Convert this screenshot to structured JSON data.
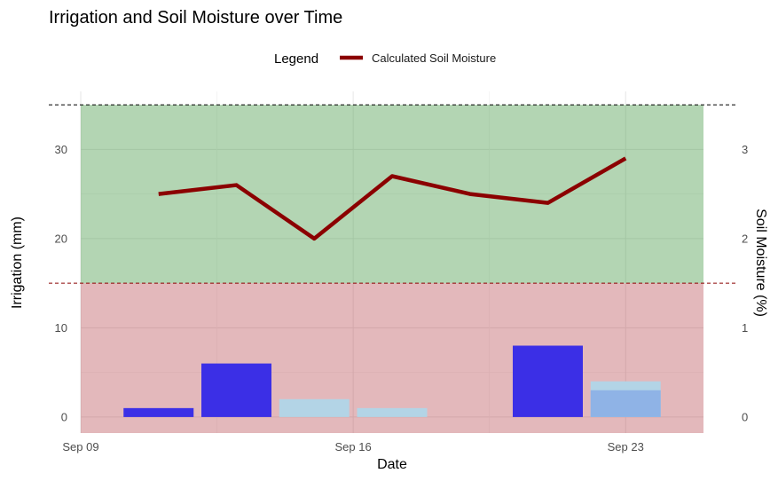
{
  "chart_data": {
    "type": "bar",
    "title": "Irrigation and Soil Moisture over Time",
    "xlabel": "Date",
    "ylabel": "Irrigation (mm)",
    "y2label": "Soil Moisture (%)",
    "x_ticks": [
      {
        "date": "2023-09-09",
        "label": "Sep 09"
      },
      {
        "date": "2023-09-16",
        "label": "Sep 16"
      },
      {
        "date": "2023-09-23",
        "label": "Sep 23"
      }
    ],
    "xlim": [
      "2023-09-09",
      "2023-09-25"
    ],
    "ylim": [
      -1.8,
      36.5
    ],
    "y_ticks": [
      0,
      10,
      20,
      30
    ],
    "y2_ticks": [
      0,
      1,
      2,
      3
    ],
    "y2_to_y_factor": 10,
    "grid": true,
    "legend": {
      "title": "Legend",
      "position": "top",
      "entries": [
        {
          "label": "Calculated Soil Moisture",
          "color": "#8b0000"
        }
      ]
    },
    "bands": [
      {
        "from": -1.8,
        "to": 15,
        "color": "#b5454d",
        "opacity": 0.38
      },
      {
        "from": 15,
        "to": 35,
        "color": "#4a9a4a",
        "opacity": 0.42
      }
    ],
    "reference_lines": [
      {
        "y": 35,
        "color": "#000000"
      },
      {
        "y": 15,
        "color": "#8b0000"
      }
    ],
    "bar_series": [
      {
        "color": "#3b2fe6",
        "points": [
          {
            "date": "2023-09-11",
            "value": 1
          },
          {
            "date": "2023-09-13",
            "value": 6
          },
          {
            "date": "2023-09-21",
            "value": 8
          }
        ]
      },
      {
        "color": "#b3d4e6",
        "points": [
          {
            "date": "2023-09-15",
            "value": 2
          },
          {
            "date": "2023-09-17",
            "value": 1
          },
          {
            "date": "2023-09-23",
            "value": 4
          }
        ]
      }
    ],
    "bar_overlay": [
      {
        "date": "2023-09-23",
        "value": 3,
        "color": "#8fb3e6"
      }
    ],
    "line_series": {
      "name": "Calculated Soil Moisture",
      "color": "#8b0000",
      "points": [
        {
          "date": "2023-09-11",
          "value": 2.5
        },
        {
          "date": "2023-09-13",
          "value": 2.6
        },
        {
          "date": "2023-09-15",
          "value": 2.0
        },
        {
          "date": "2023-09-17",
          "value": 2.7
        },
        {
          "date": "2023-09-19",
          "value": 2.5
        },
        {
          "date": "2023-09-21",
          "value": 2.4
        },
        {
          "date": "2023-09-23",
          "value": 2.9
        }
      ]
    }
  }
}
